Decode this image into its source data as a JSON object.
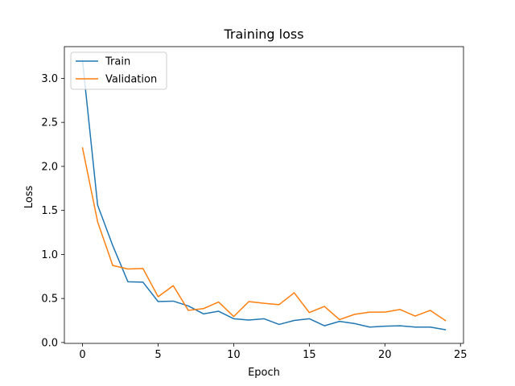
{
  "chart_data": {
    "type": "line",
    "title": "Training loss",
    "xlabel": "Epoch",
    "ylabel": "Loss",
    "xlim": [
      -1.2,
      25.2
    ],
    "ylim": [
      -0.01,
      3.36
    ],
    "xticks": [
      0,
      5,
      10,
      15,
      20,
      25
    ],
    "yticks": [
      0.0,
      0.5,
      1.0,
      1.5,
      2.0,
      2.5,
      3.0
    ],
    "xtick_labels": [
      "0",
      "5",
      "10",
      "15",
      "20",
      "25"
    ],
    "ytick_labels": [
      "0.0",
      "0.5",
      "1.0",
      "1.5",
      "2.0",
      "2.5",
      "3.0"
    ],
    "grid": false,
    "legend": "top-left",
    "x": [
      0,
      1,
      2,
      3,
      4,
      5,
      6,
      7,
      8,
      9,
      10,
      11,
      12,
      13,
      14,
      15,
      16,
      17,
      18,
      19,
      20,
      21,
      22,
      23,
      24
    ],
    "series": [
      {
        "name": "Train",
        "color": "#1f77b4",
        "values": [
          3.2,
          1.56,
          1.1,
          0.69,
          0.685,
          0.465,
          0.47,
          0.415,
          0.325,
          0.355,
          0.27,
          0.255,
          0.27,
          0.205,
          0.25,
          0.27,
          0.19,
          0.24,
          0.215,
          0.175,
          0.185,
          0.19,
          0.175,
          0.175,
          0.145
        ]
      },
      {
        "name": "Validation",
        "color": "#ff7f0e",
        "values": [
          2.21,
          1.37,
          0.875,
          0.835,
          0.84,
          0.52,
          0.645,
          0.365,
          0.385,
          0.46,
          0.295,
          0.465,
          0.445,
          0.43,
          0.565,
          0.34,
          0.41,
          0.26,
          0.32,
          0.345,
          0.345,
          0.375,
          0.3,
          0.365,
          0.25
        ]
      }
    ]
  }
}
